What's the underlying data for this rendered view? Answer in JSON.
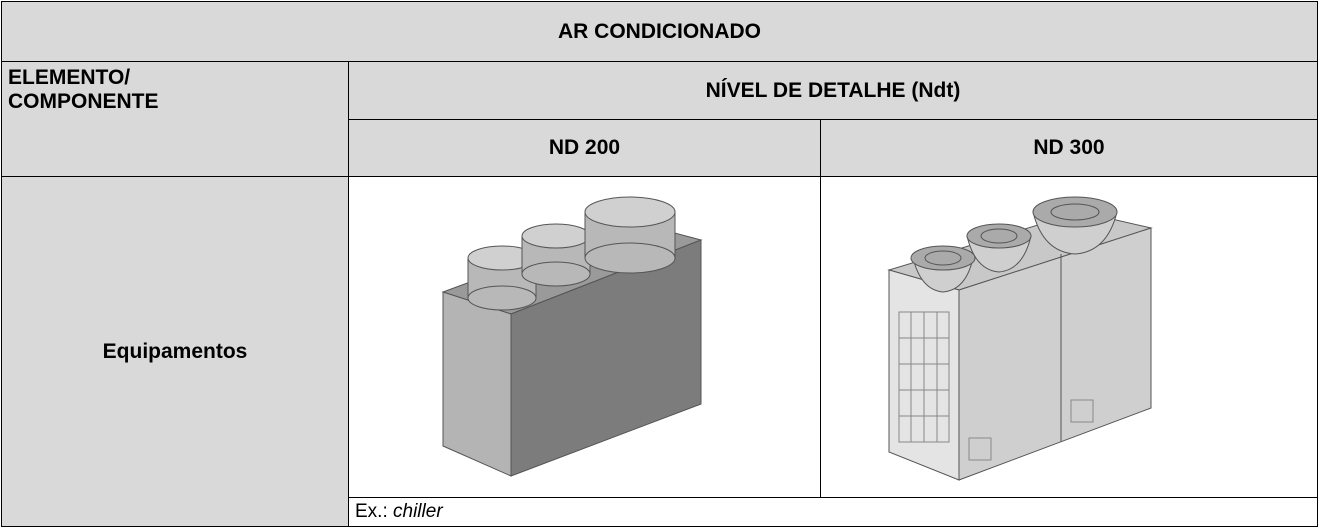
{
  "header": {
    "title": "AR CONDICIONADO"
  },
  "table": {
    "element_header": [
      "ELEMENTO/",
      "COMPONENTE"
    ],
    "detail_header": "NÍVEL DE DETALHE (Ndt)",
    "levels": [
      "ND 200",
      "ND 300"
    ],
    "rows": [
      {
        "element": "Equipamentos",
        "example_prefix": "Ex.:",
        "example_term": "chiller"
      }
    ]
  }
}
